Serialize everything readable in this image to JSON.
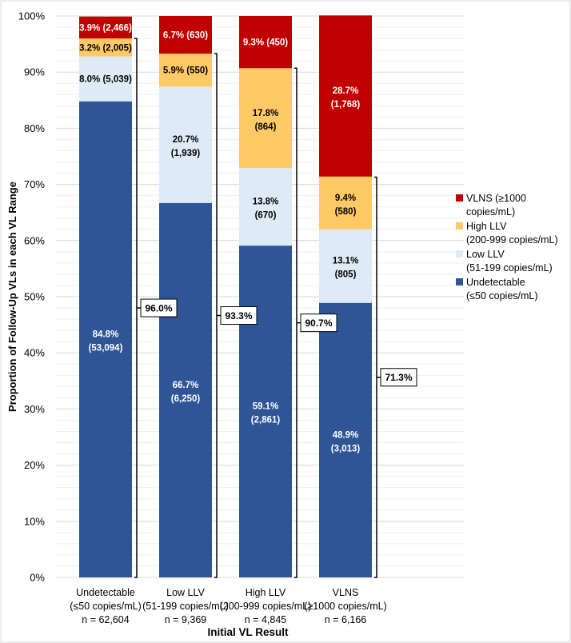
{
  "chart_data": {
    "type": "bar",
    "stacked": true,
    "title": "",
    "xlabel": "Initial VL Result",
    "ylabel": "Proportion of Follow-Up VLs in each VL Range",
    "ylim": [
      0,
      100
    ],
    "yticks": [
      "0%",
      "10%",
      "20%",
      "30%",
      "40%",
      "50%",
      "60%",
      "70%",
      "80%",
      "90%",
      "100%"
    ],
    "grid": true,
    "legend_position": "right",
    "categories": [
      {
        "name": "Undetectable",
        "range": "(≤50 copies/mL)",
        "n": "n = 62,604"
      },
      {
        "name": "Low LLV",
        "range": "(51-199 copies/mL)",
        "n": "n = 9,369"
      },
      {
        "name": "High LLV",
        "range": "(200-999 copies/mL)",
        "n": "n = 4,845"
      },
      {
        "name": "VLNS",
        "range": "(≥1000 copies/mL)",
        "n": "n = 6,166"
      }
    ],
    "series": [
      {
        "name": "Undetectable",
        "range": "(≤50 copies/mL)",
        "color": "#2F5597",
        "text_color": "#ffffff",
        "values": [
          84.8,
          66.7,
          59.1,
          48.9
        ],
        "counts": [
          "53,094",
          "6,250",
          "2,861",
          "3,013"
        ]
      },
      {
        "name": "Low LLV",
        "range": "(51-199 copies/mL)",
        "color": "#DEEBF7",
        "text_color": "#000000",
        "values": [
          8.0,
          20.7,
          13.8,
          13.1
        ],
        "counts": [
          "5,039",
          "1,939",
          "670",
          "805"
        ]
      },
      {
        "name": "High LLV",
        "range": "(200-999 copies/mL)",
        "color": "#FFC966",
        "text_color": "#000000",
        "values": [
          3.2,
          5.9,
          17.8,
          9.4
        ],
        "counts": [
          "2,005",
          "550",
          "864",
          "580"
        ]
      },
      {
        "name": "VLNS",
        "range": "(≥1000",
        "range2": "copies/mL)",
        "color": "#C00000",
        "text_color": "#ffffff",
        "values": [
          3.9,
          6.7,
          9.3,
          28.7
        ],
        "counts": [
          "2,466",
          "630",
          "450",
          "1,768"
        ]
      }
    ],
    "brackets": [
      {
        "value": 96.0,
        "label": "96.0%"
      },
      {
        "value": 93.3,
        "label": "93.3%"
      },
      {
        "value": 90.7,
        "label": "90.7%"
      },
      {
        "value": 71.3,
        "label": "71.3%"
      }
    ]
  }
}
